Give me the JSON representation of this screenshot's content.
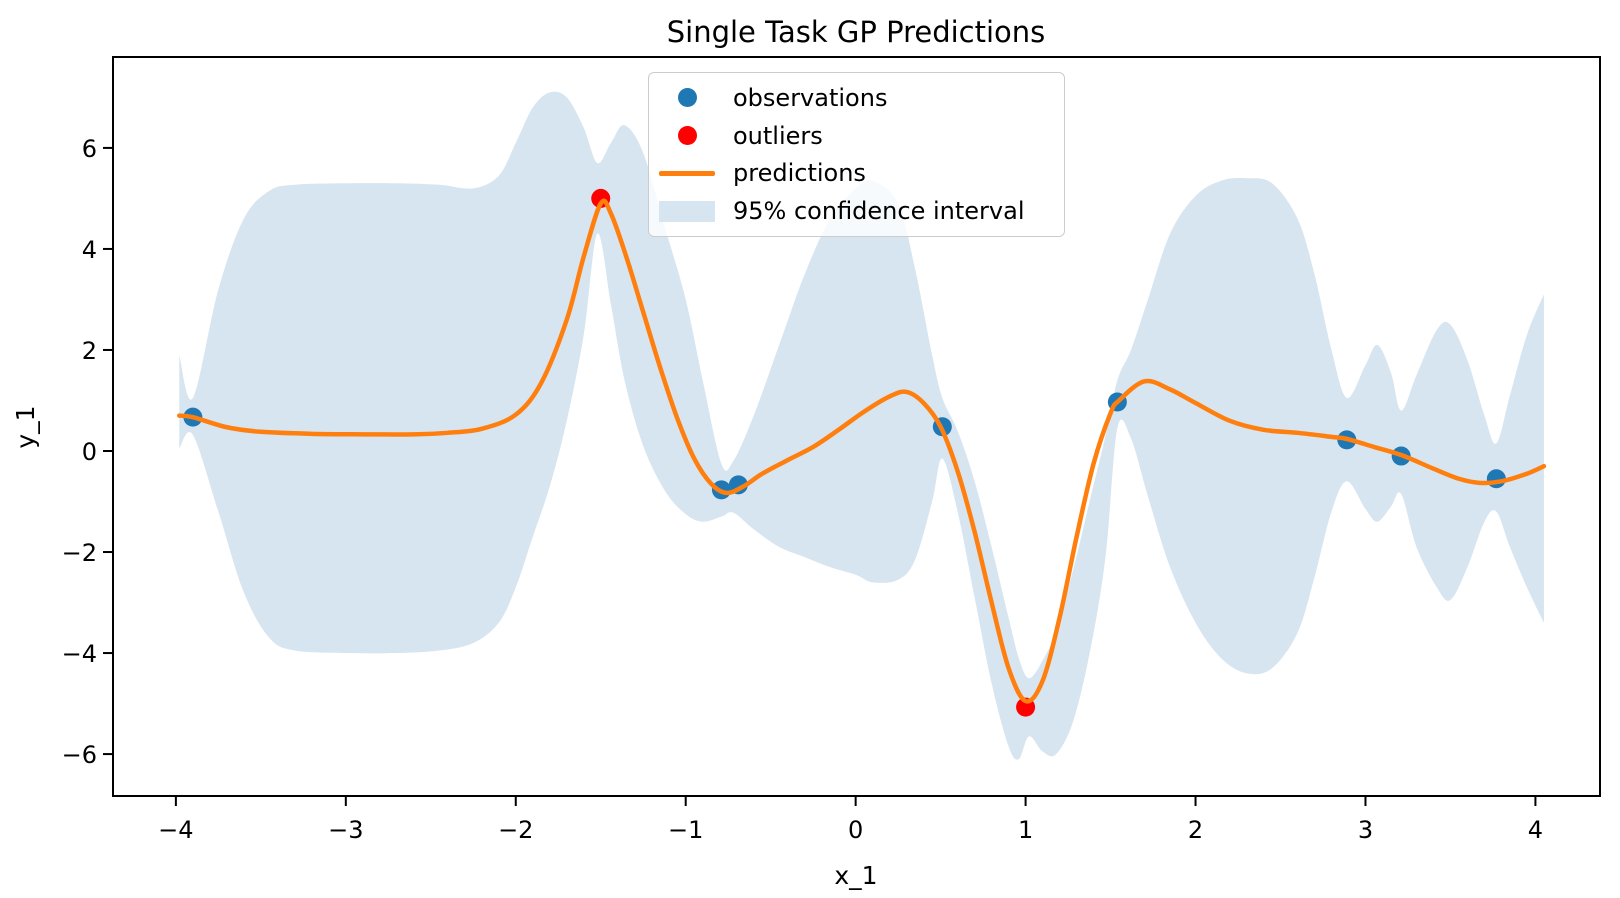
{
  "chart_data": {
    "type": "line",
    "title": "Single Task GP Predictions",
    "xlabel": "x_1",
    "ylabel": "y_1",
    "xlim": [
      -4.37,
      4.38
    ],
    "ylim": [
      -6.83,
      7.8
    ],
    "x_ticks": [
      -4,
      -3,
      -2,
      -1,
      0,
      1,
      2,
      3,
      4
    ],
    "y_ticks": [
      -6,
      -4,
      -2,
      0,
      2,
      4,
      6
    ],
    "grid": false,
    "legend": {
      "position": "upper center",
      "entries": [
        {
          "label": "observations",
          "marker": "dot",
          "color": "#1f77b4"
        },
        {
          "label": "outliers",
          "marker": "dot",
          "color": "#ff0000"
        },
        {
          "label": "predictions",
          "marker": "line",
          "color": "#ff7f0e"
        },
        {
          "label": "95% confidence interval",
          "marker": "patch",
          "color": "#d7e5f1"
        }
      ]
    },
    "series": [
      {
        "name": "observations",
        "type": "scatter",
        "color": "#1f77b4",
        "marker_radius": 9.5,
        "points": [
          [
            -3.9,
            0.67
          ],
          [
            -0.79,
            -0.77
          ],
          [
            -0.69,
            -0.67
          ],
          [
            0.51,
            0.48
          ],
          [
            1.54,
            0.97
          ],
          [
            2.89,
            0.22
          ],
          [
            3.21,
            -0.1
          ],
          [
            3.77,
            -0.55
          ]
        ]
      },
      {
        "name": "outliers",
        "type": "scatter",
        "color": "#ff0000",
        "marker_radius": 9.5,
        "points": [
          [
            -1.5,
            5.0
          ],
          [
            1.0,
            -5.07
          ]
        ]
      },
      {
        "name": "predictions",
        "type": "line",
        "color": "#ff7f0e",
        "line_width": 4.5,
        "points": [
          [
            -3.98,
            0.7
          ],
          [
            -3.9,
            0.67
          ],
          [
            -3.7,
            0.47
          ],
          [
            -3.5,
            0.38
          ],
          [
            -3.2,
            0.34
          ],
          [
            -2.9,
            0.33
          ],
          [
            -2.6,
            0.33
          ],
          [
            -2.4,
            0.36
          ],
          [
            -2.2,
            0.44
          ],
          [
            -2.0,
            0.72
          ],
          [
            -1.85,
            1.35
          ],
          [
            -1.7,
            2.6
          ],
          [
            -1.6,
            3.85
          ],
          [
            -1.5,
            4.9
          ],
          [
            -1.44,
            4.7
          ],
          [
            -1.35,
            3.85
          ],
          [
            -1.25,
            2.75
          ],
          [
            -1.15,
            1.65
          ],
          [
            -1.05,
            0.65
          ],
          [
            -0.95,
            -0.15
          ],
          [
            -0.85,
            -0.65
          ],
          [
            -0.76,
            -0.83
          ],
          [
            -0.66,
            -0.7
          ],
          [
            -0.55,
            -0.45
          ],
          [
            -0.4,
            -0.18
          ],
          [
            -0.25,
            0.08
          ],
          [
            -0.1,
            0.42
          ],
          [
            0.05,
            0.78
          ],
          [
            0.2,
            1.08
          ],
          [
            0.3,
            1.17
          ],
          [
            0.4,
            0.95
          ],
          [
            0.5,
            0.48
          ],
          [
            0.6,
            -0.4
          ],
          [
            0.7,
            -1.6
          ],
          [
            0.8,
            -3.0
          ],
          [
            0.9,
            -4.3
          ],
          [
            1.0,
            -4.95
          ],
          [
            1.1,
            -4.55
          ],
          [
            1.2,
            -3.3
          ],
          [
            1.3,
            -1.7
          ],
          [
            1.4,
            -0.25
          ],
          [
            1.5,
            0.75
          ],
          [
            1.55,
            1.0
          ],
          [
            1.7,
            1.38
          ],
          [
            1.85,
            1.22
          ],
          [
            2.0,
            0.95
          ],
          [
            2.2,
            0.6
          ],
          [
            2.4,
            0.42
          ],
          [
            2.6,
            0.36
          ],
          [
            2.8,
            0.28
          ],
          [
            2.89,
            0.24
          ],
          [
            3.05,
            0.08
          ],
          [
            3.21,
            -0.08
          ],
          [
            3.4,
            -0.35
          ],
          [
            3.55,
            -0.55
          ],
          [
            3.67,
            -0.63
          ],
          [
            3.8,
            -0.6
          ],
          [
            3.95,
            -0.45
          ],
          [
            4.05,
            -0.3
          ]
        ]
      },
      {
        "name": "95% confidence interval",
        "type": "band",
        "color": "#d7e5f1",
        "band_x_upper_lower": [
          [
            -3.98,
            1.9,
            0.05
          ],
          [
            -3.9,
            1.05,
            0.32
          ],
          [
            -3.75,
            3.2,
            -1.2
          ],
          [
            -3.6,
            4.6,
            -2.8
          ],
          [
            -3.45,
            5.15,
            -3.7
          ],
          [
            -3.3,
            5.27,
            -3.95
          ],
          [
            -3.0,
            5.3,
            -4.0
          ],
          [
            -2.7,
            5.3,
            -4.0
          ],
          [
            -2.45,
            5.27,
            -3.95
          ],
          [
            -2.25,
            5.2,
            -3.8
          ],
          [
            -2.1,
            5.45,
            -3.4
          ],
          [
            -2.0,
            6.1,
            -2.7
          ],
          [
            -1.9,
            6.8,
            -1.7
          ],
          [
            -1.8,
            7.1,
            -0.7
          ],
          [
            -1.7,
            7.0,
            0.6
          ],
          [
            -1.6,
            6.4,
            2.3
          ],
          [
            -1.52,
            5.7,
            4.3
          ],
          [
            -1.44,
            6.1,
            2.9
          ],
          [
            -1.36,
            6.45,
            1.4
          ],
          [
            -1.25,
            5.9,
            0.1
          ],
          [
            -1.12,
            4.4,
            -0.8
          ],
          [
            -1.0,
            3.0,
            -1.25
          ],
          [
            -0.9,
            1.4,
            -1.4
          ],
          [
            -0.79,
            -0.25,
            -1.3
          ],
          [
            -0.72,
            -0.2,
            -1.22
          ],
          [
            -0.6,
            0.7,
            -1.55
          ],
          [
            -0.45,
            2.1,
            -1.9
          ],
          [
            -0.3,
            3.5,
            -2.1
          ],
          [
            -0.15,
            4.6,
            -2.3
          ],
          [
            0.0,
            5.2,
            -2.45
          ],
          [
            0.1,
            5.35,
            -2.6
          ],
          [
            0.25,
            4.9,
            -2.55
          ],
          [
            0.35,
            3.6,
            -2.15
          ],
          [
            0.45,
            1.9,
            -1.0
          ],
          [
            0.51,
            1.05,
            -0.15
          ],
          [
            0.6,
            0.4,
            -1.2
          ],
          [
            0.7,
            -0.6,
            -2.9
          ],
          [
            0.8,
            -1.9,
            -4.6
          ],
          [
            0.9,
            -3.3,
            -5.85
          ],
          [
            0.96,
            -4.1,
            -6.1
          ],
          [
            1.02,
            -4.5,
            -5.65
          ],
          [
            1.1,
            -4.15,
            -5.95
          ],
          [
            1.18,
            -3.55,
            -6.0
          ],
          [
            1.28,
            -2.35,
            -5.35
          ],
          [
            1.38,
            -0.95,
            -3.95
          ],
          [
            1.47,
            0.3,
            -2.1
          ],
          [
            1.54,
            1.4,
            0.45
          ],
          [
            1.62,
            2.0,
            0.25
          ],
          [
            1.72,
            3.0,
            -0.9
          ],
          [
            1.85,
            4.3,
            -2.3
          ],
          [
            2.0,
            5.05,
            -3.4
          ],
          [
            2.15,
            5.35,
            -4.1
          ],
          [
            2.3,
            5.4,
            -4.4
          ],
          [
            2.45,
            5.3,
            -4.3
          ],
          [
            2.6,
            4.6,
            -3.6
          ],
          [
            2.7,
            3.5,
            -2.5
          ],
          [
            2.8,
            2.0,
            -1.2
          ],
          [
            2.89,
            1.05,
            -0.6
          ],
          [
            3.0,
            1.7,
            -1.15
          ],
          [
            3.07,
            2.1,
            -1.4
          ],
          [
            3.15,
            1.55,
            -1.1
          ],
          [
            3.21,
            0.8,
            -0.85
          ],
          [
            3.3,
            1.5,
            -1.9
          ],
          [
            3.42,
            2.4,
            -2.7
          ],
          [
            3.5,
            2.5,
            -2.95
          ],
          [
            3.6,
            1.8,
            -2.3
          ],
          [
            3.7,
            0.7,
            -1.4
          ],
          [
            3.77,
            0.15,
            -1.2
          ],
          [
            3.85,
            1.1,
            -1.9
          ],
          [
            3.95,
            2.3,
            -2.7
          ],
          [
            4.05,
            3.1,
            -3.4
          ]
        ]
      }
    ],
    "style": {
      "spine_color": "#000000",
      "background": "#ffffff",
      "tick_length": 10,
      "spine_width": 2
    }
  }
}
